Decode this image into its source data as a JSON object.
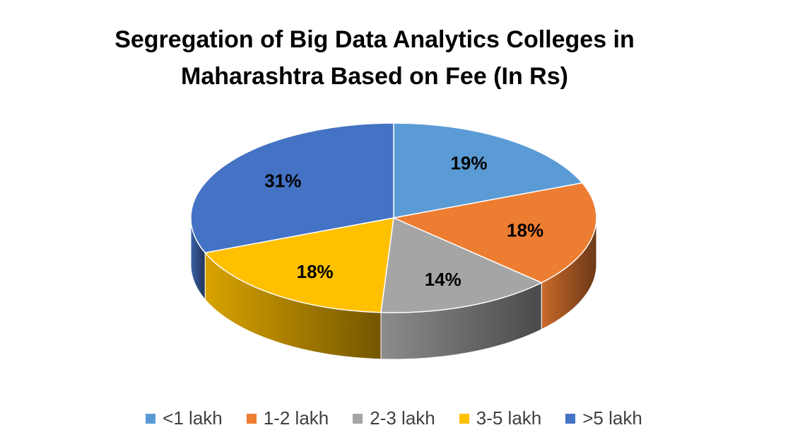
{
  "chart_data": {
    "type": "pie",
    "title_lines": [
      "Segregation of Big Data Analytics Colleges in",
      "Maharashtra Based on Fee (In Rs)"
    ],
    "categories": [
      "<1 lakh",
      "1-2 lakh",
      "2-3 lakh",
      "3-5 lakh",
      ">5 lakh"
    ],
    "values": [
      19,
      18,
      14,
      18,
      31
    ],
    "labels": [
      "19%",
      "18%",
      "14%",
      "18%",
      "31%"
    ],
    "colors": [
      "#5B9BD5",
      "#ED7D31",
      "#A5A5A5",
      "#FFC000",
      "#4472C4"
    ],
    "legend_position": "bottom",
    "style": "3d"
  }
}
